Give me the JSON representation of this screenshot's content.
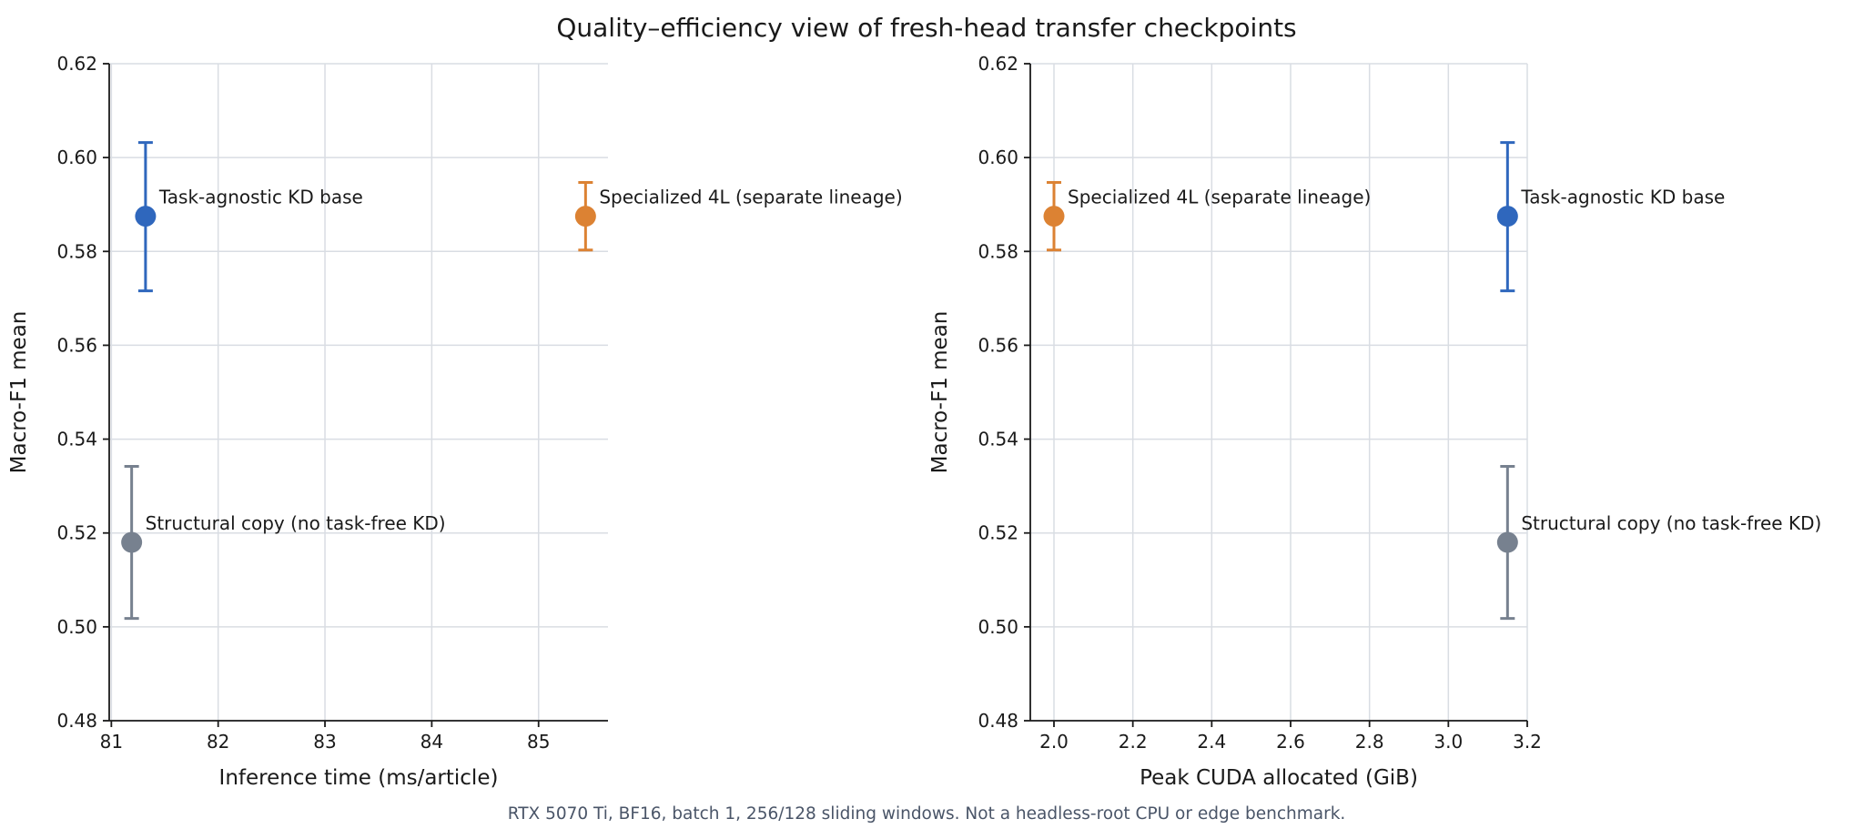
{
  "figure": {
    "title": "Quality–efficiency view of fresh-head transfer checkpoints",
    "footnote": "RTX 5070 Ti, BF16, batch 1, 256/128 sliding windows. Not a headless-root CPU or edge benchmark."
  },
  "colors": {
    "blue": "#2f67bd",
    "orange": "#dc8233",
    "gray": "#77818f"
  },
  "chart_data": [
    {
      "type": "scatter",
      "xlabel": "Inference time (ms/article)",
      "ylabel": "Macro-F1 mean",
      "xlim": [
        80.98,
        85.65
      ],
      "ylim": [
        0.48,
        0.62
      ],
      "xticks": [
        81,
        82,
        83,
        84,
        85
      ],
      "xtick_labels": [
        "81",
        "82",
        "83",
        "84",
        "85"
      ],
      "yticks": [
        0.48,
        0.5,
        0.52,
        0.54,
        0.56,
        0.58,
        0.6,
        0.62
      ],
      "ytick_labels": [
        "0.48",
        "0.50",
        "0.52",
        "0.54",
        "0.56",
        "0.58",
        "0.60",
        "0.62"
      ],
      "grid": true,
      "points": [
        {
          "label": "Task-agnostic KD base",
          "x": 81.32,
          "y": 0.5875,
          "err_low": 0.5716,
          "err_high": 0.6032,
          "color": "#2f67bd"
        },
        {
          "label": "Specialized 4L (separate lineage)",
          "x": 85.44,
          "y": 0.5875,
          "err_low": 0.5803,
          "err_high": 0.5947,
          "color": "#dc8233"
        },
        {
          "label": "Structural copy (no task-free KD)",
          "x": 81.19,
          "y": 0.518,
          "err_low": 0.5018,
          "err_high": 0.5342,
          "color": "#77818f"
        }
      ]
    },
    {
      "type": "scatter",
      "xlabel": "Peak CUDA allocated (GiB)",
      "ylabel": "Macro-F1 mean",
      "xlim": [
        1.94,
        3.2
      ],
      "ylim": [
        0.48,
        0.62
      ],
      "xticks": [
        2.0,
        2.2,
        2.4,
        2.6,
        2.8,
        3.0,
        3.2
      ],
      "xtick_labels": [
        "2.0",
        "2.2",
        "2.4",
        "2.6",
        "2.8",
        "3.0",
        "3.2"
      ],
      "yticks": [
        0.48,
        0.5,
        0.52,
        0.54,
        0.56,
        0.58,
        0.6,
        0.62
      ],
      "ytick_labels": [
        "0.48",
        "0.50",
        "0.52",
        "0.54",
        "0.56",
        "0.58",
        "0.60",
        "0.62"
      ],
      "grid": true,
      "points": [
        {
          "label": "Specialized 4L (separate lineage)",
          "x": 2.0,
          "y": 0.5875,
          "err_low": 0.5803,
          "err_high": 0.5947,
          "color": "#dc8233"
        },
        {
          "label": "Task-agnostic KD base",
          "x": 3.15,
          "y": 0.5875,
          "err_low": 0.5716,
          "err_high": 0.6032,
          "color": "#2f67bd"
        },
        {
          "label": "Structural copy (no task-free KD)",
          "x": 3.15,
          "y": 0.518,
          "err_low": 0.5018,
          "err_high": 0.5342,
          "color": "#77818f"
        }
      ]
    }
  ]
}
